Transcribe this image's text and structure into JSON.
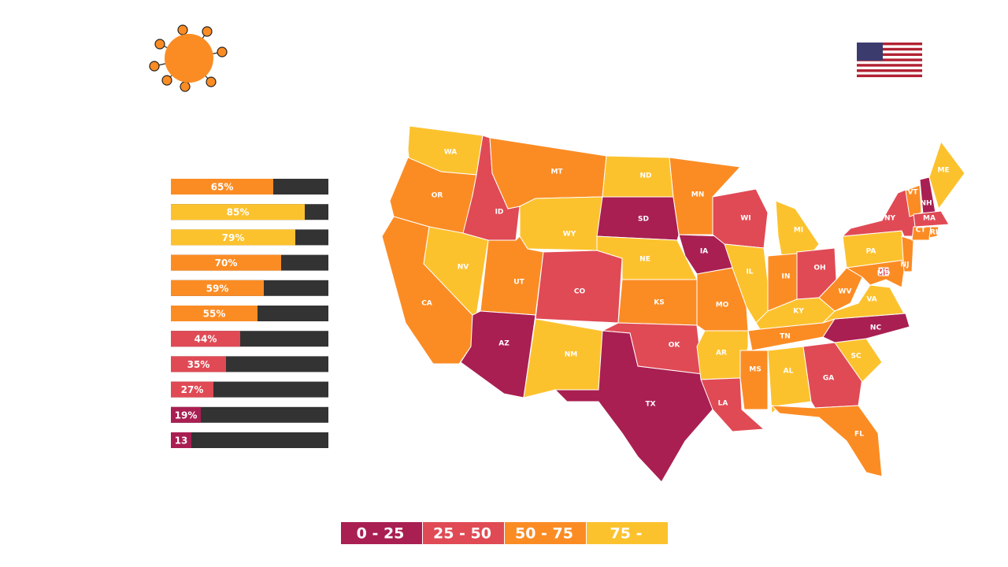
{
  "bars": {
    "values": [
      65,
      85,
      79,
      70,
      59,
      55,
      44,
      35,
      27,
      19,
      13
    ],
    "value_labels": [
      "65%",
      "85%",
      "79%",
      "70%",
      "59%",
      "55%",
      "44%",
      "35%",
      "27%",
      "19%",
      "13"
    ],
    "colors": [
      "#fb8c24",
      "#fcc22e",
      "#fcc22e",
      "#fb8c24",
      "#fb8c24",
      "#fb8c24",
      "#e04a55",
      "#e04a55",
      "#e04a55",
      "#a91f52",
      "#a91f52"
    ],
    "track_color": "#333333",
    "max": 100
  },
  "legend": [
    {
      "label": "0 - 25",
      "color": "#a91f52"
    },
    {
      "label": "25 - 50",
      "color": "#e04a55"
    },
    {
      "label": "50 - 75",
      "color": "#fb8c24"
    },
    {
      "label": "75 -",
      "color": "#fcc22e"
    }
  ],
  "states": [
    {
      "label": "WA",
      "color": "#fcc22e"
    },
    {
      "label": "OR",
      "color": "#fb8c24"
    },
    {
      "label": "CA",
      "color": "#fb8c24"
    },
    {
      "label": "NV",
      "color": "#fcc22e"
    },
    {
      "label": "ID",
      "color": "#e04a55"
    },
    {
      "label": "MT",
      "color": "#fb8c24"
    },
    {
      "label": "WY",
      "color": "#fcc22e"
    },
    {
      "label": "UT",
      "color": "#fb8c24"
    },
    {
      "label": "CO",
      "color": "#e04a55"
    },
    {
      "label": "AZ",
      "color": "#a91f52"
    },
    {
      "label": "NM",
      "color": "#fcc22e"
    },
    {
      "label": "ND",
      "color": "#fcc22e"
    },
    {
      "label": "SD",
      "color": "#a91f52"
    },
    {
      "label": "NE",
      "color": "#fcc22e"
    },
    {
      "label": "KS",
      "color": "#fb8c24"
    },
    {
      "label": "OK",
      "color": "#e04a55"
    },
    {
      "label": "TX",
      "color": "#a91f52"
    },
    {
      "label": "MN",
      "color": "#fb8c24"
    },
    {
      "label": "IA",
      "color": "#a91f52"
    },
    {
      "label": "MO",
      "color": "#fb8c24"
    },
    {
      "label": "AR",
      "color": "#fcc22e"
    },
    {
      "label": "LA",
      "color": "#e04a55"
    },
    {
      "label": "WI",
      "color": "#e04a55"
    },
    {
      "label": "IL",
      "color": "#fcc22e"
    },
    {
      "label": "MI",
      "color": "#fcc22e"
    },
    {
      "label": "IN",
      "color": "#fb8c24"
    },
    {
      "label": "OH",
      "color": "#e04a55"
    },
    {
      "label": "KY",
      "color": "#fcc22e"
    },
    {
      "label": "TN",
      "color": "#fb8c24"
    },
    {
      "label": "MS",
      "color": "#fb8c24"
    },
    {
      "label": "AL",
      "color": "#fcc22e"
    },
    {
      "label": "GA",
      "color": "#e04a55"
    },
    {
      "label": "FL",
      "color": "#fb8c24"
    },
    {
      "label": "SC",
      "color": "#fcc22e"
    },
    {
      "label": "NC",
      "color": "#a91f52"
    },
    {
      "label": "VA",
      "color": "#fcc22e"
    },
    {
      "label": "WV",
      "color": "#fb8c24"
    },
    {
      "label": "PA",
      "color": "#fcc22e"
    },
    {
      "label": "NY",
      "color": "#e04a55"
    },
    {
      "label": "MD",
      "color": "#fb8c24"
    },
    {
      "label": "NJ",
      "color": "#fb8c24"
    },
    {
      "label": "DC",
      "color": "#e04a55"
    },
    {
      "label": "VT",
      "color": "#fb8c24"
    },
    {
      "label": "NH",
      "color": "#a91f52"
    },
    {
      "label": "ME",
      "color": "#fcc22e"
    },
    {
      "label": "MA",
      "color": "#e04a55"
    },
    {
      "label": "CT",
      "color": "#fb8c24"
    },
    {
      "label": "RI",
      "color": "#fb8c24"
    }
  ]
}
